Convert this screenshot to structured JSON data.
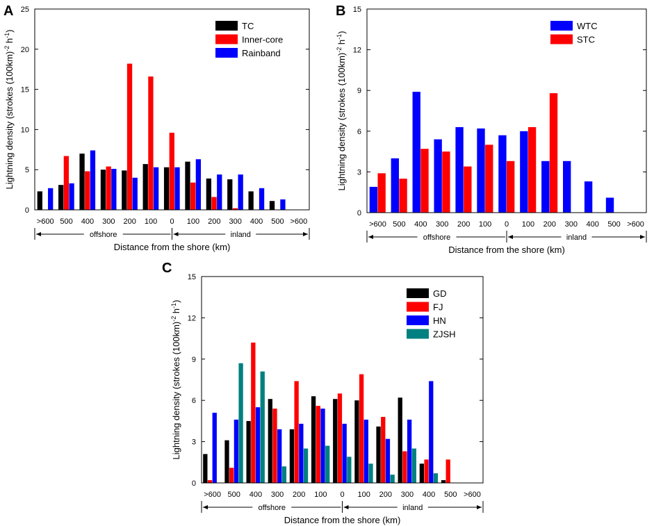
{
  "figure": {
    "ylabel_main": "Lightning density (strokes (100km)",
    "ylabel_sup1": "-2",
    "ylabel_mid": " h",
    "ylabel_sup2": "-1",
    "ylabel_end": ")"
  },
  "chart_data": [
    {
      "panel": "A",
      "type": "bar",
      "title": "",
      "xlabel": "Distance from the shore (km)",
      "ylabel": "Lightning density (strokes (100km)-2 h-1)",
      "categories": [
        ">600",
        "500",
        "400",
        "300",
        "200",
        "100",
        "0",
        "100",
        "200",
        "300",
        "400",
        "500",
        ">600"
      ],
      "ylim": [
        0,
        25
      ],
      "yticks": [
        0,
        5,
        10,
        15,
        20,
        25
      ],
      "region_labels": {
        "left": "offshore",
        "right": "inland"
      },
      "legend_position": "top-right",
      "series": [
        {
          "name": "TC",
          "color": "#000000",
          "values": [
            2.3,
            3.1,
            7.0,
            5.0,
            4.9,
            5.7,
            5.3,
            6.0,
            3.9,
            3.8,
            2.3,
            1.1,
            0
          ]
        },
        {
          "name": "Inner-core",
          "color": "#ff0000",
          "values": [
            0,
            6.7,
            4.8,
            5.4,
            18.2,
            16.6,
            9.6,
            3.4,
            1.6,
            0.2,
            0,
            0,
            0
          ]
        },
        {
          "name": "Rainband",
          "color": "#0000ff",
          "values": [
            2.7,
            3.3,
            7.4,
            5.1,
            4.0,
            5.3,
            5.3,
            6.3,
            4.4,
            4.4,
            2.7,
            1.3,
            0
          ]
        }
      ]
    },
    {
      "panel": "B",
      "type": "bar",
      "title": "",
      "xlabel": "Distance from the shore (km)",
      "ylabel": "Lightning density (strokes (100km)-2 h-1)",
      "categories": [
        ">600",
        "500",
        "400",
        "300",
        "200",
        "100",
        "0",
        "100",
        "200",
        "300",
        "400",
        "500",
        ">600"
      ],
      "ylim": [
        0,
        15
      ],
      "yticks": [
        0,
        3,
        6,
        9,
        12,
        15
      ],
      "region_labels": {
        "left": "offshore",
        "right": "inland"
      },
      "legend_position": "top-right",
      "series": [
        {
          "name": "WTC",
          "color": "#0000ff",
          "values": [
            1.9,
            4.0,
            8.9,
            5.4,
            6.3,
            6.2,
            5.7,
            6.0,
            3.8,
            3.8,
            2.3,
            1.1,
            0
          ]
        },
        {
          "name": "STC",
          "color": "#ff0000",
          "values": [
            2.9,
            2.5,
            4.7,
            4.5,
            3.4,
            5.0,
            3.8,
            6.3,
            8.8,
            0,
            0,
            0,
            0
          ]
        }
      ]
    },
    {
      "panel": "C",
      "type": "bar",
      "title": "",
      "xlabel": "Distance from the shore (km)",
      "ylabel": "Lightning density (strokes (100km)-2 h-1)",
      "categories": [
        ">600",
        "500",
        "400",
        "300",
        "200",
        "100",
        "0",
        "100",
        "200",
        "300",
        "400",
        "500",
        ">600"
      ],
      "ylim": [
        0,
        15
      ],
      "yticks": [
        0,
        3,
        6,
        9,
        12,
        15
      ],
      "region_labels": {
        "left": "offshore",
        "right": "inland"
      },
      "legend_position": "top-right",
      "series": [
        {
          "name": "GD",
          "color": "#000000",
          "values": [
            2.1,
            3.1,
            4.5,
            6.1,
            3.9,
            6.3,
            6.1,
            6.0,
            4.1,
            6.2,
            1.4,
            0.2,
            0
          ]
        },
        {
          "name": "FJ",
          "color": "#ff0000",
          "values": [
            0.2,
            1.1,
            10.2,
            5.4,
            7.4,
            5.6,
            6.5,
            7.9,
            4.8,
            2.3,
            1.7,
            1.7,
            0
          ]
        },
        {
          "name": "HN",
          "color": "#0000ff",
          "values": [
            5.1,
            4.6,
            5.5,
            3.9,
            4.3,
            5.4,
            4.3,
            4.6,
            3.2,
            4.6,
            7.4,
            0,
            0
          ]
        },
        {
          "name": "ZJSH",
          "color": "#008080",
          "values": [
            0,
            8.7,
            8.1,
            1.2,
            2.5,
            2.7,
            1.9,
            1.4,
            0.6,
            2.5,
            0.7,
            0,
            0
          ]
        }
      ]
    }
  ]
}
